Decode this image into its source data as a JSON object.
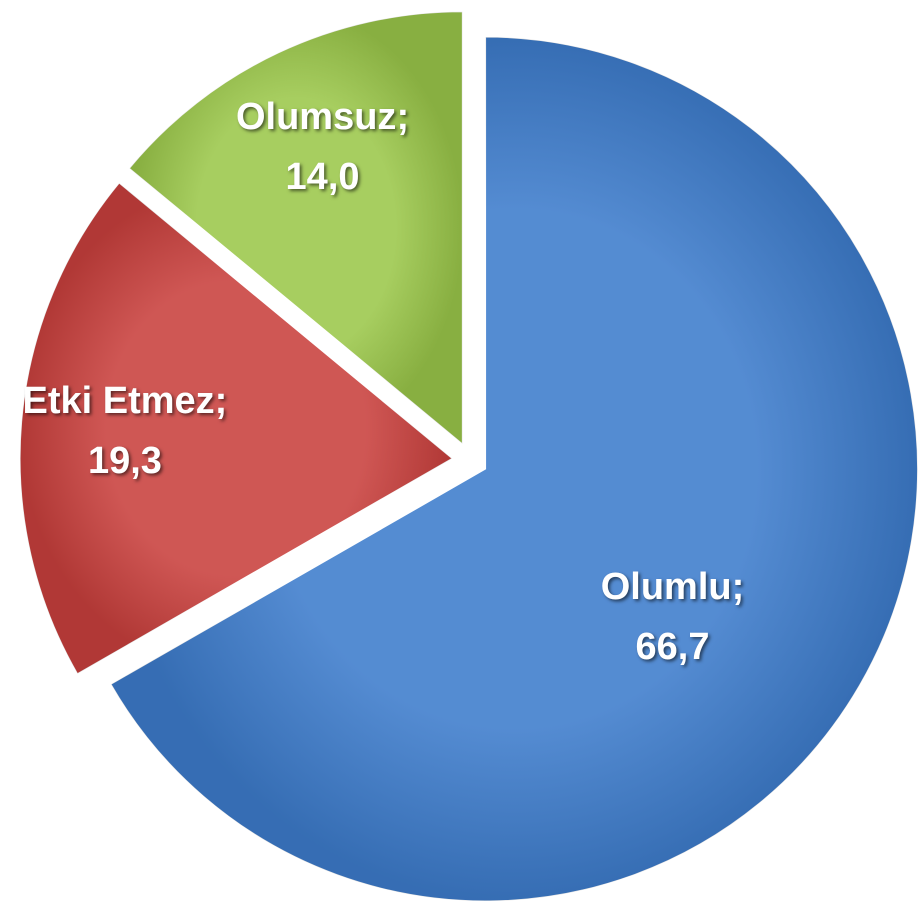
{
  "chart_data": {
    "type": "pie",
    "categories": [
      "Olumlu",
      "Etki Etmez",
      "Olumsuz"
    ],
    "values": [
      66.7,
      19.3,
      14.0
    ],
    "value_labels": [
      "66,7",
      "19,3",
      "14,0"
    ],
    "label_separator": ";",
    "colors": [
      "#3d7ccc",
      "#c9403d",
      "#9bc74a"
    ],
    "exploded": true
  }
}
